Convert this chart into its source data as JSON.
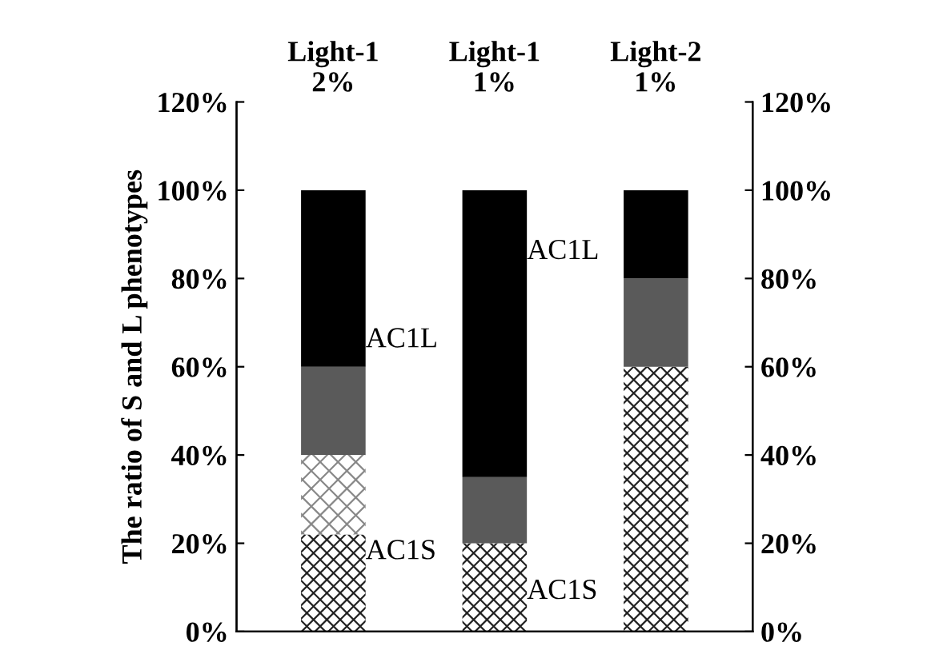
{
  "chart_data": {
    "type": "bar",
    "stacked": true,
    "ylabel": "The ratio of S and L phenotypes",
    "categories": [
      "Light-1\n2%",
      "Light-1\n1%",
      "Light-2\n1%"
    ],
    "series": [
      {
        "color": "#222222",
        "values": [
          22,
          20,
          60
        ]
      },
      {
        "color": "#888888",
        "values": [
          18,
          0,
          0
        ]
      },
      {
        "color": "#5a5a5a",
        "values": [
          20,
          15,
          20
        ]
      },
      {
        "color": "#000000",
        "values": [
          40,
          65,
          20
        ]
      }
    ],
    "ylim": [
      0,
      120
    ],
    "yticks": [
      {
        "value": 0,
        "label": "0%"
      },
      {
        "value": 20,
        "label": "20%"
      },
      {
        "value": 40,
        "label": "40%"
      },
      {
        "value": 60,
        "label": "60%"
      },
      {
        "value": 80,
        "label": "80%"
      },
      {
        "value": 100,
        "label": "100%"
      },
      {
        "value": 120,
        "label": "120%"
      }
    ],
    "y2lim": [
      0,
      120
    ],
    "y2ticks": [
      {
        "value": 0,
        "label": "0%"
      },
      {
        "value": 20,
        "label": "20%"
      },
      {
        "value": 40,
        "label": "40%"
      },
      {
        "value": 60,
        "label": "60%"
      },
      {
        "value": 80,
        "label": "80%"
      },
      {
        "value": 100,
        "label": "100%"
      },
      {
        "value": 120,
        "label": "120%"
      }
    ],
    "annotations": [
      "AC1L",
      "AC1S",
      "AC1L",
      "AC1S"
    ],
    "grid": false,
    "legend": false
  }
}
